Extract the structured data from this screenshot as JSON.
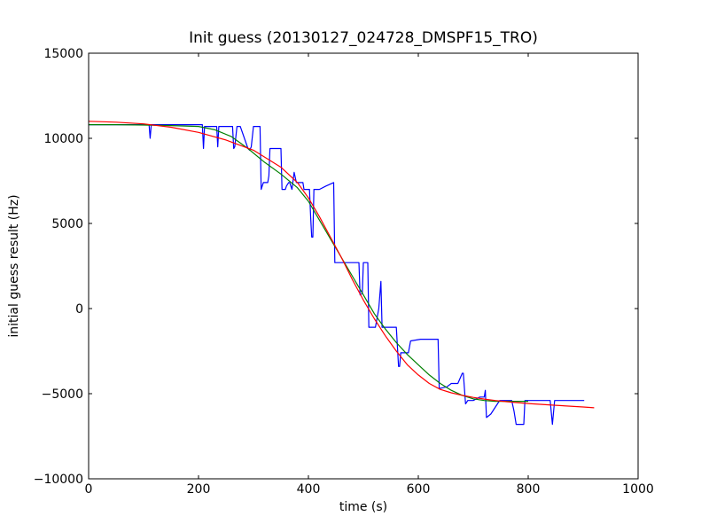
{
  "chart_data": {
    "type": "line",
    "title": "Init guess (20130127_024728_DMSPF15_TRO)",
    "xlabel": "time (s)",
    "ylabel": "initial guess result (Hz)",
    "xlim": [
      0,
      1000
    ],
    "ylim": [
      -10000,
      15000
    ],
    "xticks": [
      0,
      200,
      400,
      600,
      800,
      1000
    ],
    "yticks": [
      -10000,
      -5000,
      0,
      5000,
      10000,
      15000
    ],
    "xtick_labels": [
      "0",
      "200",
      "400",
      "600",
      "800",
      "1000"
    ],
    "ytick_labels": [
      "−10000",
      "−5000",
      "0",
      "5000",
      "10000",
      "15000"
    ],
    "grid": false,
    "series": [
      {
        "color": "#0000ff",
        "x": [
          0,
          110,
          112,
          114,
          207,
          209,
          211,
          233,
          235,
          237,
          262,
          264,
          266,
          270,
          273,
          276,
          290,
          293,
          296,
          300,
          302,
          312,
          314,
          316,
          318,
          326,
          328,
          330,
          350,
          352,
          356,
          358,
          360,
          364,
          366,
          370,
          374,
          378,
          390,
          392,
          398,
          402,
          404,
          406,
          408,
          410,
          412,
          420,
          432,
          446,
          448,
          482,
          492,
          494,
          498,
          500,
          502,
          508,
          510,
          512,
          522,
          528,
          532,
          534,
          542,
          544,
          560,
          564,
          566,
          568,
          570,
          580,
          582,
          586,
          604,
          614,
          636,
          638,
          652,
          660,
          672,
          680,
          682,
          686,
          688,
          690,
          700,
          712,
          720,
          722,
          724,
          732,
          744,
          748,
          770,
          774,
          778,
          792,
          794,
          840,
          844,
          848,
          902
        ],
        "y": [
          10800,
          10800,
          10000,
          10800,
          10800,
          9400,
          10700,
          10700,
          9500,
          10700,
          10700,
          9400,
          9500,
          10700,
          10700,
          10700,
          9400,
          9300,
          9500,
          10700,
          10700,
          10700,
          7000,
          7200,
          7400,
          7400,
          7800,
          9400,
          9400,
          7000,
          7000,
          7000,
          7200,
          7400,
          7400,
          7000,
          8000,
          7400,
          7400,
          7000,
          7000,
          7000,
          5400,
          4200,
          4200,
          7000,
          7000,
          7000,
          7200,
          7400,
          2700,
          2700,
          2700,
          800,
          900,
          2700,
          2700,
          2700,
          -1100,
          -1100,
          -1100,
          0,
          1600,
          -1100,
          -1100,
          -1100,
          -1100,
          -3400,
          -3400,
          -2600,
          -2600,
          -2600,
          -2600,
          -1900,
          -1800,
          -1800,
          -1800,
          -4700,
          -4600,
          -4400,
          -4400,
          -3800,
          -3800,
          -5600,
          -5500,
          -5400,
          -5400,
          -5200,
          -5200,
          -4800,
          -6400,
          -6200,
          -5600,
          -5400,
          -5400,
          -6000,
          -6800,
          -6800,
          -5400,
          -5400,
          -6800,
          -5400,
          -5400
        ]
      },
      {
        "color": "#008000",
        "x": [
          0,
          50,
          100,
          150,
          200,
          230,
          260,
          290,
          320,
          350,
          380,
          400,
          420,
          440,
          460,
          480,
          500,
          520,
          540,
          560,
          580,
          600,
          620,
          640,
          660,
          680,
          700,
          720,
          740,
          760,
          780,
          800
        ],
        "y": [
          10800,
          10800,
          10780,
          10750,
          10700,
          10500,
          10100,
          9400,
          8600,
          7900,
          7100,
          6300,
          5200,
          4100,
          3000,
          1900,
          800,
          -300,
          -1200,
          -2000,
          -2700,
          -3300,
          -3900,
          -4400,
          -4800,
          -5100,
          -5300,
          -5400,
          -5450,
          -5450,
          -5450,
          -5450
        ]
      },
      {
        "color": "#ff0000",
        "x": [
          0,
          50,
          100,
          150,
          200,
          250,
          300,
          350,
          380,
          400,
          420,
          440,
          460,
          480,
          500,
          520,
          540,
          560,
          580,
          600,
          620,
          640,
          660,
          680,
          700,
          720,
          740,
          760,
          800,
          850,
          900,
          920
        ],
        "y": [
          11000,
          10950,
          10850,
          10650,
          10350,
          9900,
          9300,
          8300,
          7400,
          6500,
          5400,
          4200,
          3000,
          1700,
          500,
          -600,
          -1600,
          -2500,
          -3300,
          -3900,
          -4400,
          -4750,
          -4950,
          -5100,
          -5220,
          -5320,
          -5400,
          -5470,
          -5580,
          -5680,
          -5780,
          -5830
        ]
      }
    ]
  }
}
